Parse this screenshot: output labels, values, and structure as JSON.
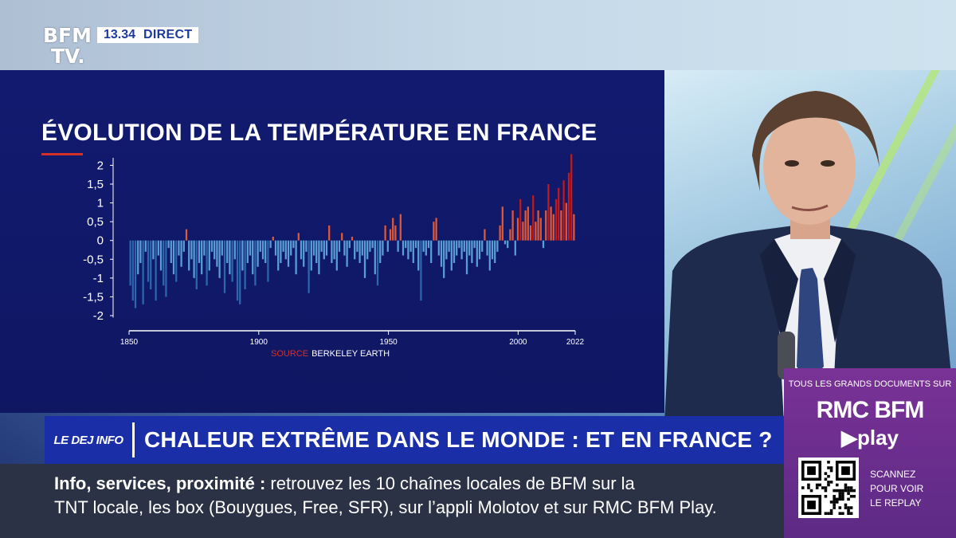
{
  "broadcast": {
    "logo_line1": "BFM",
    "logo_line2": "TV.",
    "time": "13.34",
    "live_label": "DIRECT"
  },
  "chart_data": {
    "type": "bar",
    "title": "ÉVOLUTION DE LA TEMPÉRATURE EN FRANCE",
    "source_label": "SOURCE",
    "source": "BERKELEY EARTH",
    "xlabel": "",
    "ylabel": "",
    "ylim": [
      -2,
      2.2
    ],
    "yticks": [
      "2",
      "1,5",
      "1",
      "0,5",
      "0",
      "-0,5",
      "-1",
      "-1,5",
      "-2"
    ],
    "yticks_values": [
      2,
      1.5,
      1,
      0.5,
      0,
      -0.5,
      -1,
      -1.5,
      -2
    ],
    "xticks": [
      "1850",
      "1900",
      "1950",
      "2000",
      "2022"
    ],
    "xticks_values": [
      1850,
      1900,
      1950,
      2000,
      2022
    ],
    "x_start": 1850,
    "x_end": 2022,
    "colors": {
      "cold": "#5a9fd6",
      "cold_dark": "#2d67ad",
      "warm": "#e05a3a",
      "hot": "#c21a1a"
    },
    "values": [
      -1.2,
      -1.6,
      -1.8,
      -0.9,
      -0.6,
      -1.7,
      -0.3,
      -1.1,
      -1.3,
      -0.5,
      -1.6,
      -0.4,
      -0.8,
      -1.2,
      -1.5,
      -0.2,
      -0.6,
      -0.9,
      -1.1,
      -0.4,
      -0.7,
      -0.3,
      0.3,
      -0.8,
      -0.5,
      -1.0,
      -1.3,
      -0.6,
      -0.9,
      -0.4,
      -1.2,
      -0.8,
      -0.3,
      -0.5,
      -0.7,
      -1.0,
      -0.4,
      -1.4,
      -0.6,
      -0.9,
      -1.1,
      -0.5,
      -1.6,
      -1.7,
      -0.8,
      -1.3,
      -0.6,
      -0.4,
      -0.9,
      -1.2,
      -0.7,
      -0.3,
      -0.5,
      -0.6,
      -1.1,
      -0.2,
      0.1,
      -0.4,
      -0.8,
      -0.6,
      -0.3,
      -0.5,
      -0.7,
      -0.4,
      -0.2,
      -0.9,
      0.2,
      -0.5,
      -0.7,
      -0.3,
      -1.4,
      -0.8,
      -0.4,
      -0.6,
      -0.9,
      -0.3,
      -0.5,
      -0.4,
      0.4,
      -0.6,
      -0.5,
      -0.8,
      -0.3,
      0.2,
      -0.4,
      -0.7,
      -0.2,
      0.1,
      -0.5,
      -0.3,
      -0.6,
      -0.4,
      -1.0,
      -0.5,
      -0.3,
      -0.2,
      -0.9,
      -1.2,
      -0.6,
      -0.4,
      0.4,
      -0.3,
      0.3,
      0.6,
      0.4,
      -0.3,
      0.7,
      -0.4,
      -0.2,
      -0.5,
      -0.3,
      -0.6,
      -0.2,
      -0.8,
      -1.6,
      -0.3,
      -0.4,
      -0.2,
      -0.6,
      0.5,
      0.6,
      -0.4,
      -0.7,
      -1.0,
      -0.5,
      -0.3,
      -0.8,
      -0.6,
      -0.4,
      -0.2,
      -0.5,
      -0.3,
      -0.9,
      -0.4,
      -0.6,
      -0.2,
      -0.7,
      -0.5,
      -0.3,
      0.3,
      -0.4,
      -0.8,
      -0.5,
      -0.6,
      -0.3,
      0.4,
      0.9,
      -0.1,
      -0.2,
      0.3,
      0.8,
      -0.4,
      0.6,
      1.1,
      0.5,
      0.8,
      0.9,
      0.4,
      1.2,
      0.5,
      0.8,
      0.6,
      -0.2,
      0.8,
      1.5,
      0.9,
      0.7,
      1.1,
      1.4,
      0.8,
      1.6,
      1.0,
      1.8,
      2.3,
      0.7
    ]
  },
  "lower_third": {
    "show_badge": "LE DEJ INFO",
    "headline": "CHALEUR EXTRÊME DANS LE MONDE : ET EN FRANCE ?"
  },
  "ticker": {
    "lead": "Info, services, proximité  :",
    "line1_rest": " retrouvez les 10 chaînes locales de BFM sur la",
    "line2": "TNT locale, les box (Bouygues, Free, SFR), sur l’appli Molotov et sur RMC BFM Play."
  },
  "promo": {
    "top": "TOUS LES GRANDS DOCUMENTS SUR",
    "brand": "RMC BFM",
    "play": "▶play",
    "scan_lines": [
      "SCANNEZ",
      "POUR VOIR",
      "LE REPLAY"
    ]
  }
}
